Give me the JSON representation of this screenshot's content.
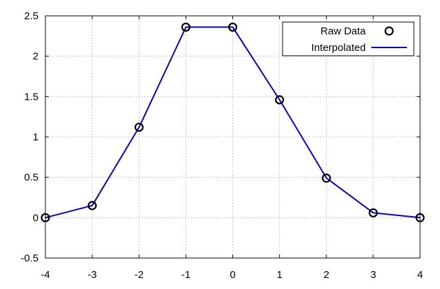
{
  "chart_data": {
    "type": "line",
    "title": "",
    "xlabel": "",
    "ylabel": "",
    "xlim": [
      -4,
      4
    ],
    "ylim": [
      -0.5,
      2.5
    ],
    "xticks": [
      -4,
      -3,
      -2,
      -1,
      0,
      1,
      2,
      3,
      4
    ],
    "yticks": [
      -0.5,
      0,
      0.5,
      1,
      1.5,
      2,
      2.5
    ],
    "xtick_labels": [
      "-4",
      "-3",
      "-2",
      "-1",
      "0",
      "1",
      "2",
      "3",
      "4"
    ],
    "ytick_labels": [
      "-0.5",
      "0",
      "0.5",
      "1",
      "1.5",
      "2",
      "2.5"
    ],
    "grid": true,
    "legend_position": "top-right",
    "series": [
      {
        "name": "Raw Data",
        "kind": "markers",
        "marker": "open-circle",
        "color": "#000000",
        "x": [
          -4,
          -3,
          -2,
          -1,
          0,
          1,
          2,
          3,
          4
        ],
        "y": [
          0.0,
          0.15,
          1.12,
          2.36,
          2.36,
          1.46,
          0.49,
          0.06,
          0.0
        ]
      },
      {
        "name": "Interpolated",
        "kind": "line",
        "color": "#0000dd",
        "x": [
          -4,
          -3,
          -2,
          -1,
          0,
          1,
          2,
          3,
          4
        ],
        "y": [
          0.0,
          0.15,
          1.12,
          2.36,
          2.36,
          1.46,
          0.49,
          0.06,
          0.0
        ]
      }
    ]
  }
}
